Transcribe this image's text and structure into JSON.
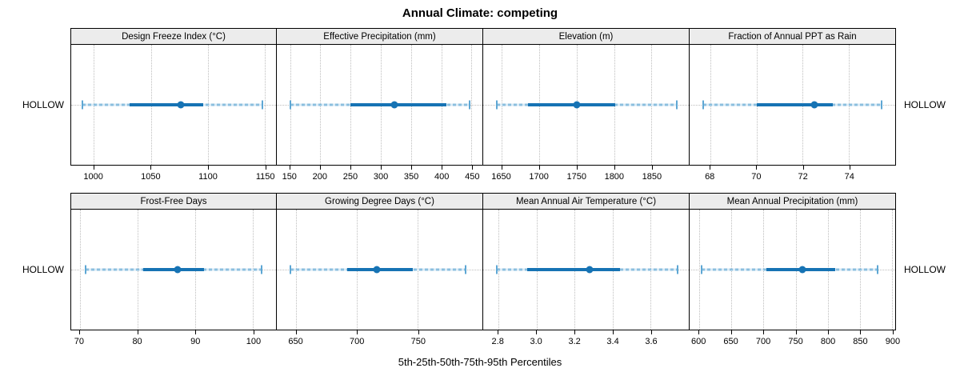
{
  "title": "Annual Climate: competing",
  "x_caption": "5th-25th-50th-75th-95th Percentiles",
  "row_label": "HOLLOW",
  "colors": {
    "median_dot": "#1673b4",
    "iqr_bar": "#1673b4",
    "whisker_line": "#8cbfdf",
    "whisker_cap": "#5ea7d4",
    "gridline": "#bdbdbd",
    "strip_background": "#ececec",
    "panel_border": "#000000"
  },
  "chart_data": {
    "type": "percentile-dotplot",
    "title": "Annual Climate: competing",
    "xlabel": "5th-25th-50th-75th-95th Percentiles",
    "category": "HOLLOW",
    "percentile_labels": [
      "5th",
      "25th",
      "50th",
      "75th",
      "95th"
    ],
    "layout_rows": 2,
    "layout_cols": 4,
    "grid": "dotted at ticks and category row",
    "panels": [
      {
        "title": "Design Freeze Index (°C)",
        "xlim": [
          980,
          1160
        ],
        "ticks": [
          {
            "v": 1000,
            "label": "1000"
          },
          {
            "v": 1050,
            "label": "1050"
          },
          {
            "v": 1100,
            "label": "1100"
          },
          {
            "v": 1150,
            "label": "1150"
          }
        ],
        "percentiles": [
          990,
          1031,
          1076,
          1096,
          1148
        ]
      },
      {
        "title": "Effective Precipitation (mm)",
        "xlim": [
          128,
          468
        ],
        "ticks": [
          {
            "v": 150,
            "label": "150"
          },
          {
            "v": 200,
            "label": "200"
          },
          {
            "v": 250,
            "label": "250"
          },
          {
            "v": 300,
            "label": "300"
          },
          {
            "v": 350,
            "label": "350"
          },
          {
            "v": 400,
            "label": "400"
          },
          {
            "v": 450,
            "label": "450"
          }
        ],
        "percentiles": [
          150,
          250,
          322,
          408,
          447
        ]
      },
      {
        "title": "Elevation (m)",
        "xlim": [
          1625,
          1900
        ],
        "ticks": [
          {
            "v": 1650,
            "label": "1650"
          },
          {
            "v": 1700,
            "label": "1700"
          },
          {
            "v": 1750,
            "label": "1750"
          },
          {
            "v": 1800,
            "label": "1800"
          },
          {
            "v": 1850,
            "label": "1850"
          }
        ],
        "percentiles": [
          1643,
          1685,
          1750,
          1802,
          1884
        ]
      },
      {
        "title": "Fraction of Annual PPT as Rain",
        "xlim": [
          67.1,
          76.0
        ],
        "ticks": [
          {
            "v": 68,
            "label": "68"
          },
          {
            "v": 70,
            "label": "70"
          },
          {
            "v": 72,
            "label": "72"
          },
          {
            "v": 74,
            "label": "74"
          }
        ],
        "percentiles": [
          67.7,
          70.0,
          72.5,
          73.3,
          75.4
        ]
      },
      {
        "title": "Frost-Free Days",
        "xlim": [
          68.5,
          104
        ],
        "ticks": [
          {
            "v": 70,
            "label": "70"
          },
          {
            "v": 80,
            "label": "80"
          },
          {
            "v": 90,
            "label": "90"
          },
          {
            "v": 100,
            "label": "100"
          }
        ],
        "percentiles": [
          71,
          81,
          87,
          91.5,
          101.5
        ]
      },
      {
        "title": "Growing Degree Days (°C)",
        "xlim": [
          634,
          803
        ],
        "ticks": [
          {
            "v": 650,
            "label": "650"
          },
          {
            "v": 700,
            "label": "700"
          },
          {
            "v": 750,
            "label": "750"
          }
        ],
        "percentiles": [
          645,
          692,
          716,
          746,
          789
        ]
      },
      {
        "title": "Mean Annual Air Temperature (°C)",
        "xlim": [
          2.72,
          3.8
        ],
        "ticks": [
          {
            "v": 2.8,
            "label": "2.8"
          },
          {
            "v": 3.0,
            "label": "3.0"
          },
          {
            "v": 3.2,
            "label": "3.2"
          },
          {
            "v": 3.4,
            "label": "3.4"
          },
          {
            "v": 3.6,
            "label": "3.6"
          }
        ],
        "percentiles": [
          2.79,
          2.95,
          3.28,
          3.44,
          3.74
        ]
      },
      {
        "title": "Mean Annual Precipitation (mm)",
        "xlim": [
          585,
          905
        ],
        "ticks": [
          {
            "v": 600,
            "label": "600"
          },
          {
            "v": 650,
            "label": "650"
          },
          {
            "v": 700,
            "label": "700"
          },
          {
            "v": 750,
            "label": "750"
          },
          {
            "v": 800,
            "label": "800"
          },
          {
            "v": 850,
            "label": "850"
          },
          {
            "v": 900,
            "label": "900"
          }
        ],
        "percentiles": [
          604,
          705,
          760,
          812,
          878
        ]
      }
    ]
  }
}
